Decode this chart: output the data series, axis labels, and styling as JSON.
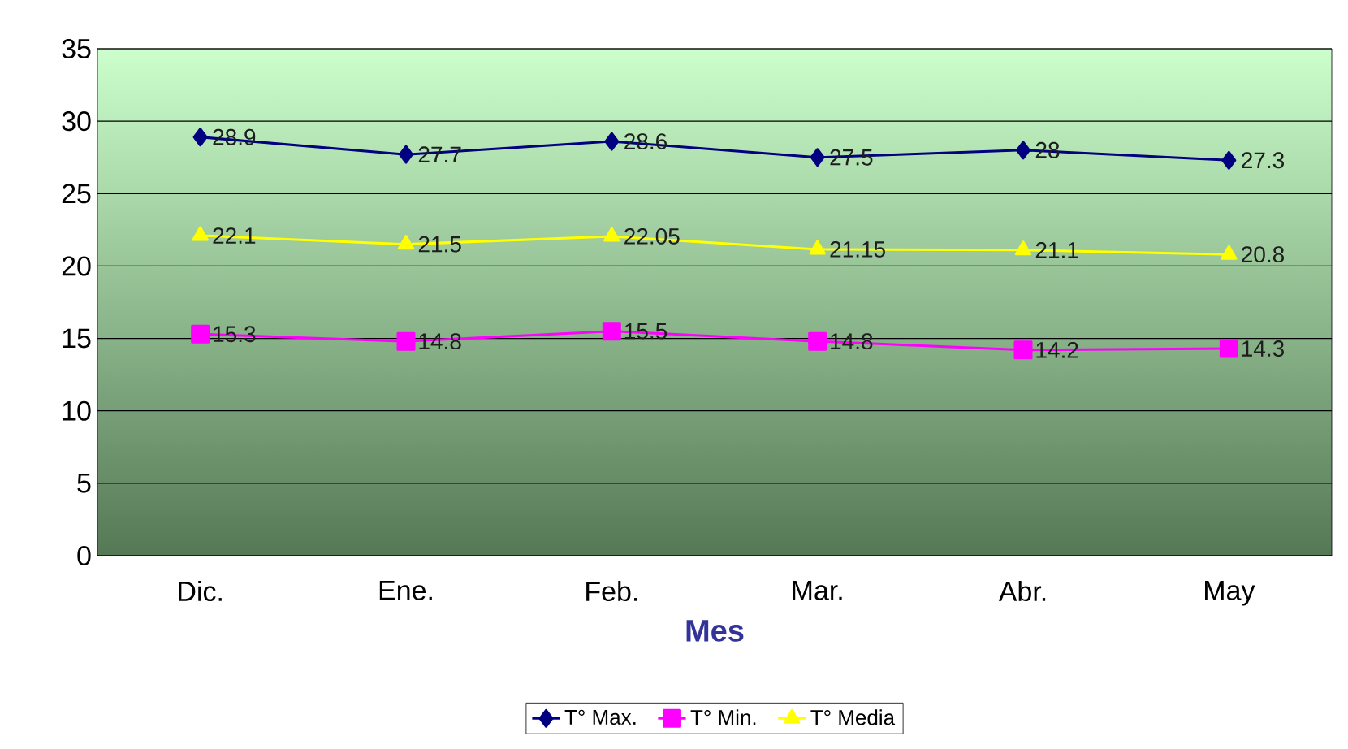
{
  "chart_data": {
    "type": "line",
    "xlabel": "Mes",
    "categories": [
      "Dic.",
      "Ene.",
      "Feb.",
      "Mar.",
      "Abr.",
      "May"
    ],
    "series": [
      {
        "name": "T° Max.",
        "color": "#000080",
        "marker": "diamond",
        "values": [
          28.9,
          27.7,
          28.6,
          27.5,
          28,
          27.3
        ]
      },
      {
        "name": "T° Min.",
        "color": "#ff00ff",
        "marker": "square",
        "values": [
          15.3,
          14.8,
          15.5,
          14.8,
          14.2,
          14.3
        ]
      },
      {
        "name": "T° Media",
        "color": "#ffff00",
        "marker": "triangle",
        "values": [
          22.1,
          21.5,
          22.05,
          21.15,
          21.1,
          20.8
        ]
      }
    ],
    "ylim": [
      0,
      35
    ],
    "yticks": [
      0,
      5,
      10,
      15,
      20,
      25,
      30,
      35
    ],
    "grid": "y",
    "legend": "bottom",
    "data_labels": true
  }
}
